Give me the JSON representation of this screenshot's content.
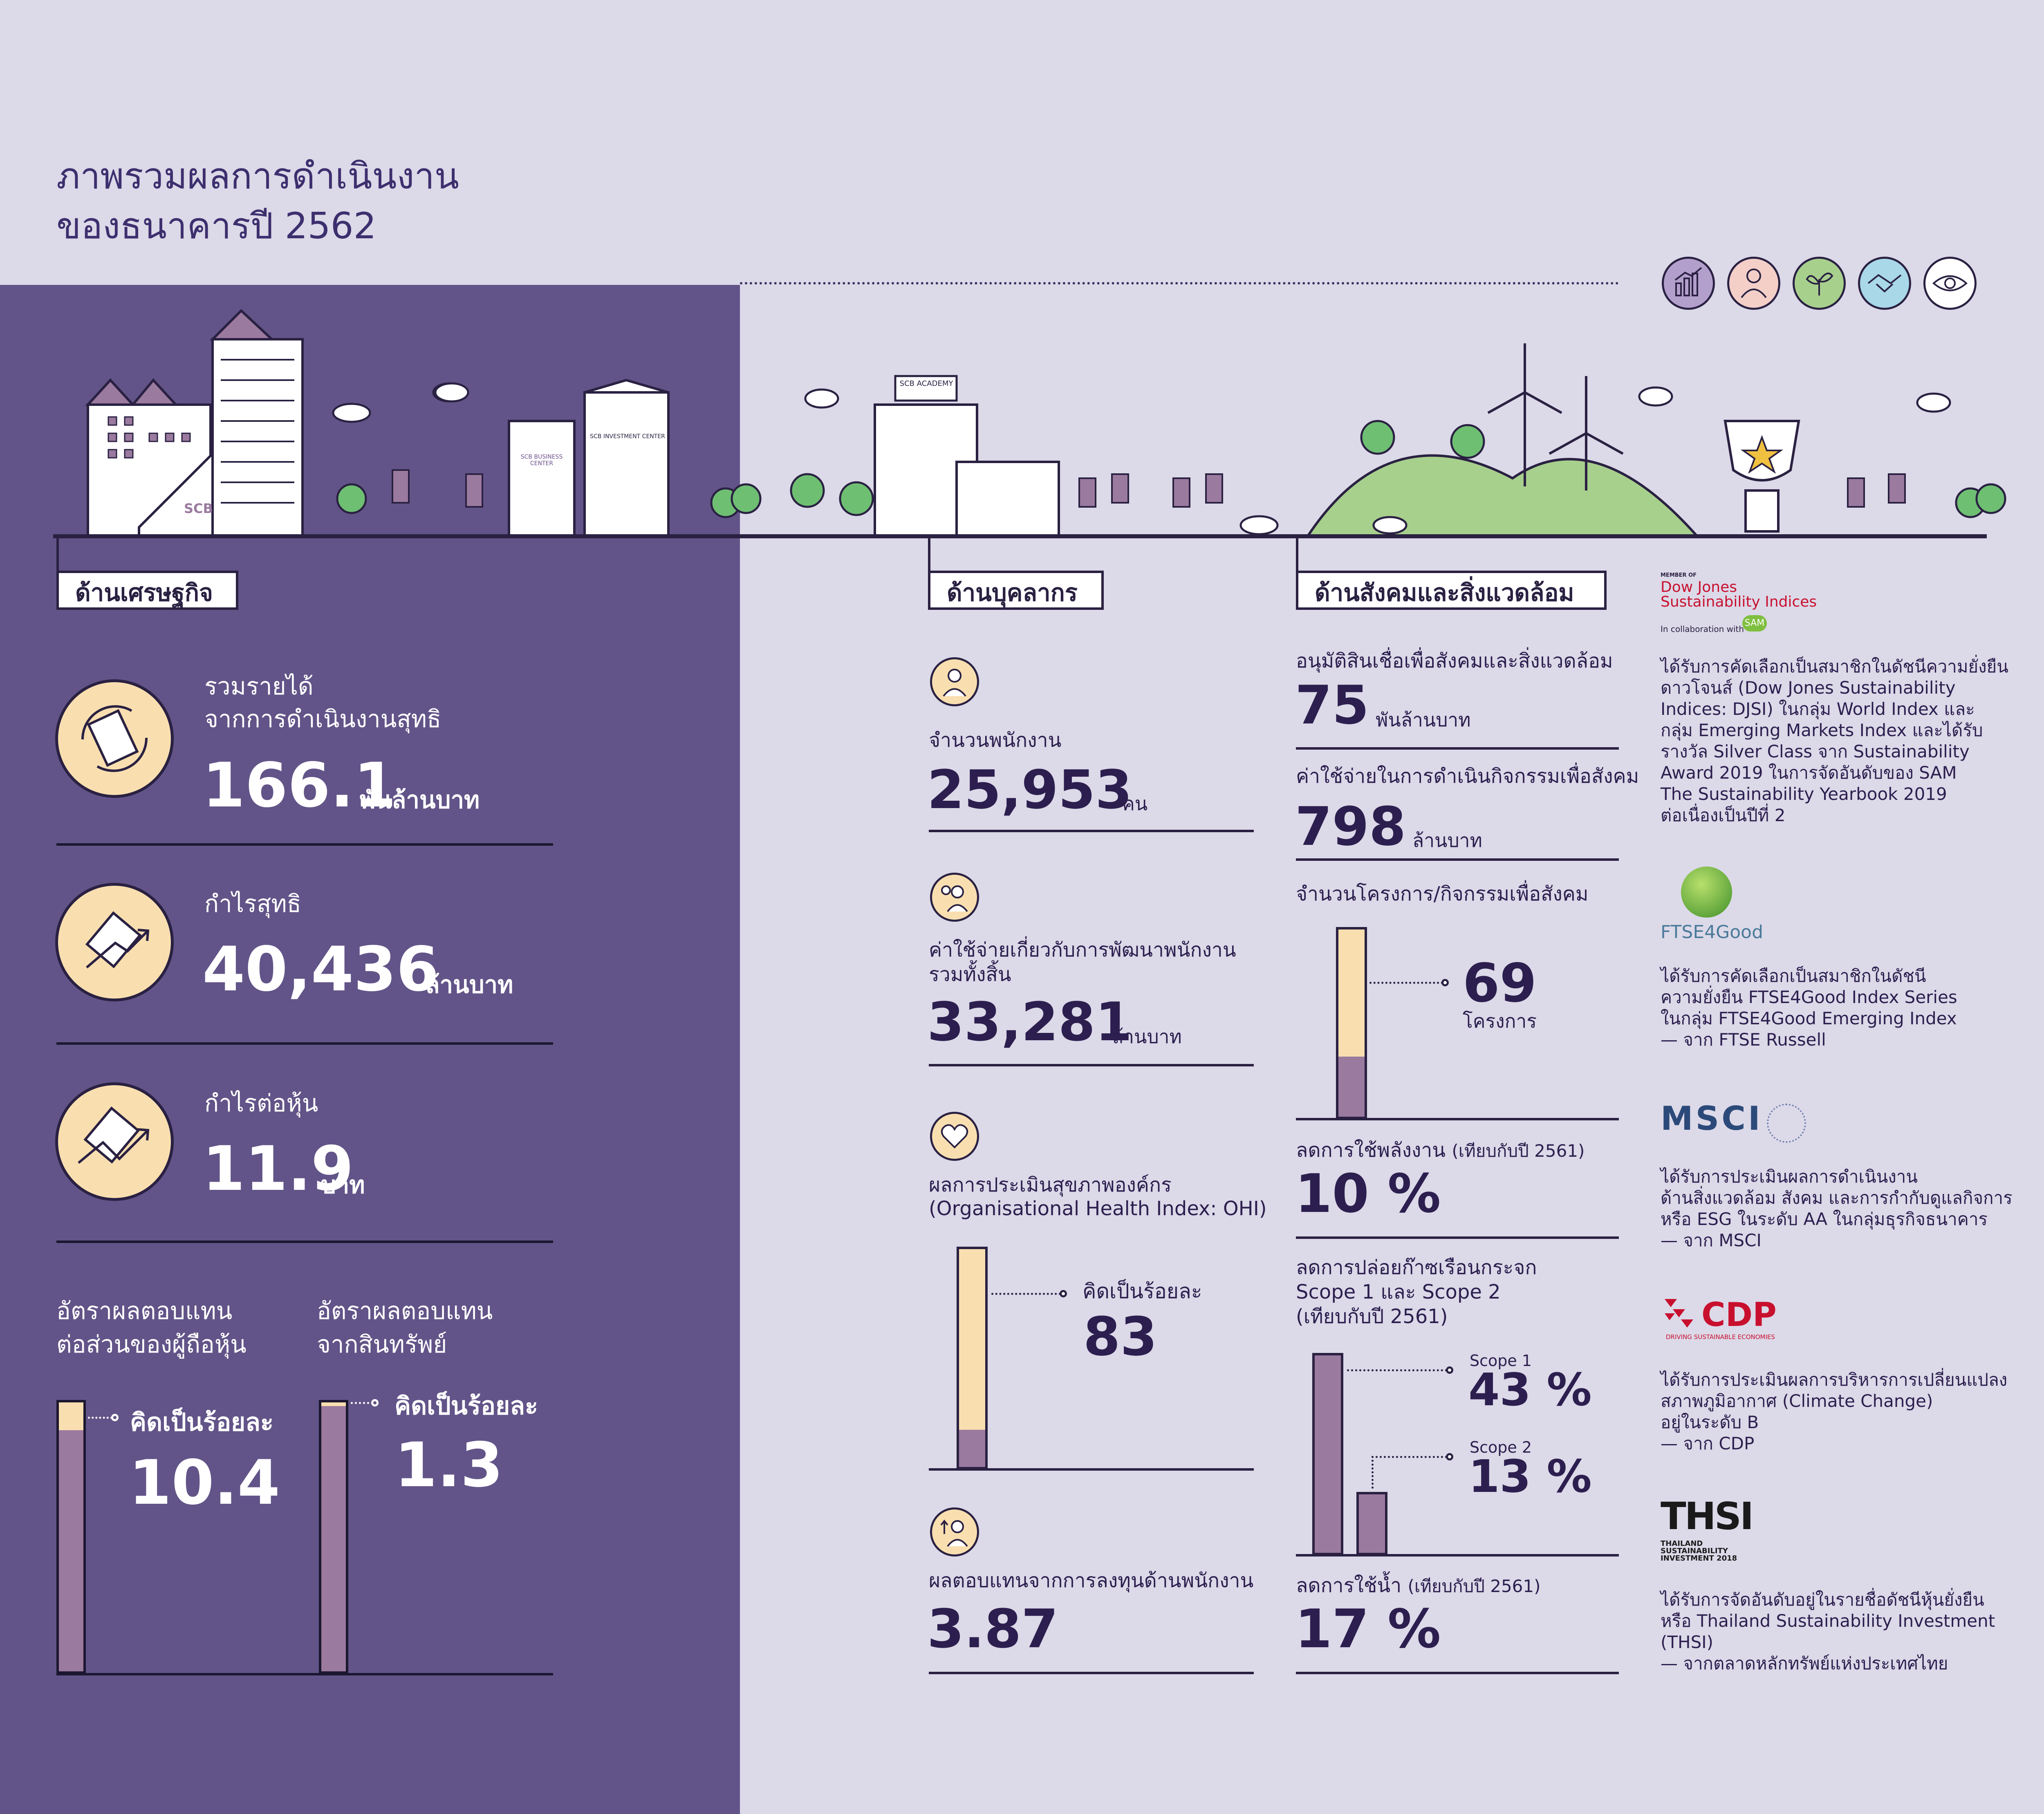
{
  "title": {
    "line1": "ภาพรวมผลการดำเนินงาน",
    "line2": "ของธนาคารปี 2562"
  },
  "illustration": {
    "scb_logo": "SCB",
    "business_center": "SCB BUSINESS CENTER",
    "investment_center": "SCB INVESTMENT CENTER",
    "academy": "SCB ACADEMY"
  },
  "top_icons": [
    "growth-chart-icon",
    "people-icon",
    "plant-icon",
    "handshake-icon",
    "eye-icon"
  ],
  "economic": {
    "heading": "ด้านเศรษฐกิจ",
    "revenue": {
      "label1": "รวมรายได้",
      "label2": "จากการดำเนินงานสุทธิ",
      "value": "166.1",
      "unit": "พันล้านบาท"
    },
    "profit": {
      "label": "กำไรสุทธิ",
      "value": "40,436",
      "unit": "ล้านบาท"
    },
    "eps": {
      "label": "กำไรต่อหุ้น",
      "value": "11.9",
      "unit": "บาท"
    },
    "roe": {
      "label1": "อัตราผลตอบแทน",
      "label2": "ต่อส่วนของผู้ถือหุ้น",
      "prefix": "คิดเป็นร้อยละ",
      "value": "10.4",
      "percent": 10.4
    },
    "roa": {
      "label1": "อัตราผลตอบแทน",
      "label2": "จากสินทรัพย์",
      "prefix": "คิดเป็นร้อยละ",
      "value": "1.3",
      "percent": 1.3
    }
  },
  "people": {
    "heading": "ด้านบุคลากร",
    "employees": {
      "label": "จำนวนพนักงาน",
      "value": "25,953",
      "unit": "คน"
    },
    "dev_cost": {
      "label1": "ค่าใช้จ่ายเกี่ยวกับการพัฒนาพนักงาน",
      "label2": "รวมทั้งสิ้น",
      "value": "33,281",
      "unit": "ล้านบาท"
    },
    "ohi": {
      "label1": "ผลการประเมินสุขภาพองค์กร",
      "label2": "(Organisational Health Index: OHI)",
      "prefix": "คิดเป็นร้อยละ",
      "value": "83"
    },
    "roi": {
      "label": "ผลตอบแทนจากการลงทุนด้านพนักงาน",
      "value": "3.87"
    }
  },
  "social": {
    "heading": "ด้านสังคมและสิ่งแวดล้อม",
    "loans": {
      "label": "อนุมัติสินเชื่อเพื่อสังคมและสิ่งแวดล้อม",
      "value": "75",
      "unit": "พันล้านบาท"
    },
    "csr_cost": {
      "label": "ค่าใช้จ่ายในการดำเนินกิจกรรมเพื่อสังคม",
      "value": "798",
      "unit": "ล้านบาท"
    },
    "projects": {
      "label": "จำนวนโครงการ/กิจกรรมเพื่อสังคม",
      "value": "69",
      "unit": "โครงการ"
    },
    "energy": {
      "label_main": "ลดการใช้พลังงาน",
      "label_sub": "(เทียบกับปี 2561)",
      "value": "10 %"
    },
    "ghg": {
      "label1": "ลดการปล่อยก๊าซเรือนกระจก",
      "label2": "Scope 1 และ Scope 2",
      "label3": "(เทียบกับปี 2561)",
      "scope1_label": "Scope 1",
      "scope1_value": "43 %",
      "scope2_label": "Scope 2",
      "scope2_value": "13 %"
    },
    "water": {
      "label_main": "ลดการใช้น้ำ",
      "label_sub": "(เทียบกับปี 2561)",
      "value": "17 %"
    }
  },
  "awards": {
    "djsi": {
      "logo_small": "MEMBER OF",
      "logo_line1": "Dow Jones",
      "logo_line2": "Sustainability Indices",
      "logo_line3": "In collaboration with",
      "logo_sam": "SAM",
      "lines": [
        "ได้รับการคัดเลือกเป็นสมาชิกในดัชนีความยั่งยืน",
        "ดาวโจนส์ (Dow Jones Sustainability",
        "Indices: DJSI) ในกลุ่ม World Index และ",
        "กลุ่ม Emerging Markets Index และได้รับ",
        "รางวัล Silver Class จาก Sustainability",
        "Award 2019 ในการจัดอันดับของ SAM",
        "The Sustainability Yearbook 2019",
        "ต่อเนื่องเป็นปีที่ 2"
      ]
    },
    "ftse": {
      "logo": "FTSE4Good",
      "lines": [
        "ได้รับการคัดเลือกเป็นสมาชิกในดัชนี",
        "ความยั่งยืน FTSE4Good Index Series",
        "ในกลุ่ม FTSE4Good Emerging Index",
        "— จาก FTSE Russell"
      ]
    },
    "msci": {
      "logo": "MSCI",
      "lines": [
        "ได้รับการประเมินผลการดำเนินงาน",
        "ด้านสิ่งแวดล้อม สังคม และการกำกับดูแลกิจการ",
        "หรือ ESG ในระดับ AA ในกลุ่มธุรกิจธนาคาร",
        "— จาก MSCI"
      ]
    },
    "cdp": {
      "logo": "CDP",
      "logo_sub": "DRIVING SUSTAINABLE ECONOMIES",
      "lines": [
        "ได้รับการประเมินผลการบริหารการเปลี่ยนแปลง",
        "สภาพภูมิอากาศ (Climate Change)",
        "อยู่ในระดับ B",
        "— จาก CDP"
      ]
    },
    "thsi": {
      "logo": "THSI",
      "logo_sub1": "THAILAND",
      "logo_sub2": "SUSTAINABILITY",
      "logo_sub3": "INVESTMENT 2018",
      "lines": [
        "ได้รับการจัดอันดับอยู่ในรายชื่อดัชนีหุ้นยั่งยืน",
        "หรือ Thailand Sustainability Investment",
        "(THSI)",
        "— จากตลาดหลักทรัพย์แห่งประเทศไทย"
      ]
    }
  },
  "colors": {
    "left_panel": "#625488",
    "background": "#dcd9e8",
    "bar_fill": "#9b7a9f",
    "bar_empty": "#f9dfb0",
    "text_dark": "#2c1f4f"
  }
}
